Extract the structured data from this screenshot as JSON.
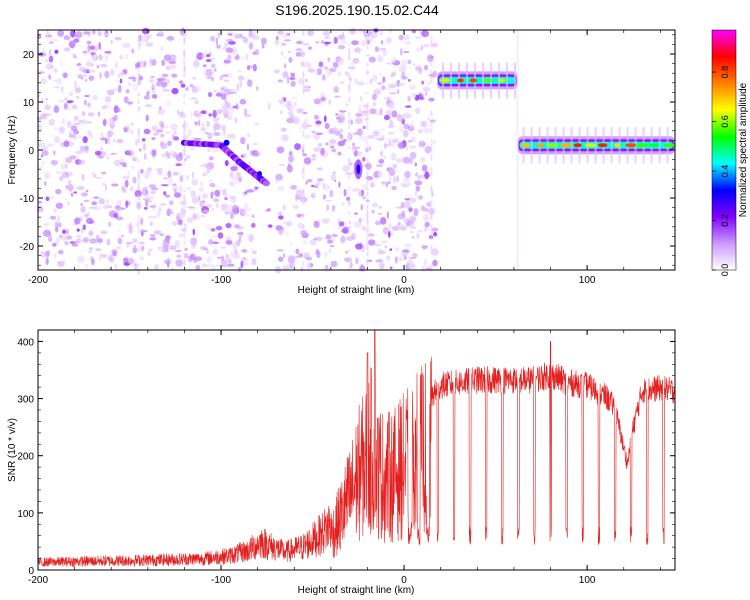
{
  "chart_data": [
    {
      "type": "heatmap",
      "title": "S196.2025.190.15.02.C44",
      "xlabel": "Height of straight line (km)",
      "ylabel": "Frequency (Hz)",
      "xlim": [
        -200,
        148
      ],
      "ylim": [
        -25,
        25
      ],
      "xticks": [
        -200,
        -100,
        0,
        100
      ],
      "yticks": [
        -20,
        -10,
        0,
        10,
        20
      ],
      "colorbar": {
        "label": "Normalized spectral amplitude",
        "range": [
          0,
          0.97
        ],
        "ticks": [
          0,
          0.2,
          0.4,
          0.6,
          0.8
        ],
        "colormap": [
          "#ffffff",
          "#cc99ff",
          "#8000ff",
          "#0000ff",
          "#00ffff",
          "#00ff00",
          "#ffff00",
          "#ff8000",
          "#ff0000",
          "#ff00ff"
        ]
      },
      "regions": [
        {
          "kind": "noise",
          "x_range": [
            -200,
            17
          ],
          "f_range": [
            -25,
            25
          ],
          "amplitude": 0.03
        },
        {
          "kind": "gap",
          "x_range": [
            -80,
            -70
          ],
          "f_range": [
            -25,
            25
          ],
          "amplitude": 0.0
        },
        {
          "kind": "noise",
          "x_range": [
            17,
            148
          ],
          "f_range": [
            -25,
            25
          ],
          "amplitude": 0.0
        }
      ],
      "features": [
        {
          "kind": "ridge",
          "points": [
            [
              -120,
              1.5
            ],
            [
              -100,
              1.0
            ],
            [
              -90,
              -2.5
            ],
            [
              -80,
              -5.5
            ],
            [
              -75,
              -7.0
            ]
          ],
          "amplitude": 0.25
        },
        {
          "kind": "blob",
          "x": -25,
          "f": -4.0,
          "amplitude": 0.3
        },
        {
          "kind": "band",
          "x_range": [
            18,
            62
          ],
          "f": 14.5,
          "amplitude": 0.9
        },
        {
          "kind": "band",
          "x_range": [
            62,
            148
          ],
          "f": 1.0,
          "amplitude": 0.85
        }
      ]
    },
    {
      "type": "line",
      "xlabel": "Height of straight line (km)",
      "ylabel": "SNR (10 * v/v)",
      "xlim": [
        -200,
        148
      ],
      "ylim": [
        0,
        420
      ],
      "xticks": [
        -200,
        -100,
        0,
        100
      ],
      "yticks": [
        0,
        100,
        200,
        300,
        400
      ],
      "color": "#e32020",
      "envelope": [
        [
          -200,
          15
        ],
        [
          -160,
          18
        ],
        [
          -130,
          20
        ],
        [
          -110,
          22
        ],
        [
          -95,
          28
        ],
        [
          -85,
          38
        ],
        [
          -78,
          55
        ],
        [
          -72,
          45
        ],
        [
          -65,
          35
        ],
        [
          -55,
          45
        ],
        [
          -45,
          70
        ],
        [
          -38,
          100
        ],
        [
          -32,
          160
        ],
        [
          -28,
          200
        ],
        [
          -25,
          240
        ],
        [
          -22,
          260
        ],
        [
          -18,
          300
        ],
        [
          -15,
          250
        ],
        [
          -10,
          230
        ],
        [
          -5,
          240
        ],
        [
          0,
          260
        ],
        [
          5,
          280
        ],
        [
          10,
          300
        ],
        [
          15,
          320
        ],
        [
          20,
          340
        ],
        [
          30,
          345
        ],
        [
          40,
          350
        ],
        [
          55,
          350
        ],
        [
          70,
          350
        ],
        [
          80,
          360
        ],
        [
          90,
          345
        ],
        [
          100,
          340
        ],
        [
          110,
          320
        ],
        [
          115,
          300
        ],
        [
          120,
          225
        ],
        [
          122,
          195
        ],
        [
          125,
          260
        ],
        [
          130,
          330
        ],
        [
          140,
          335
        ],
        [
          148,
          330
        ]
      ],
      "spikes": [
        [
          -20,
          380
        ],
        [
          -16,
          420
        ],
        [
          80,
          400
        ]
      ],
      "dropouts": {
        "x_start": 18,
        "x_end": 148,
        "spacing": 8.8,
        "min_value": 55,
        "extra": [
          3,
          8,
          13
        ]
      }
    }
  ]
}
